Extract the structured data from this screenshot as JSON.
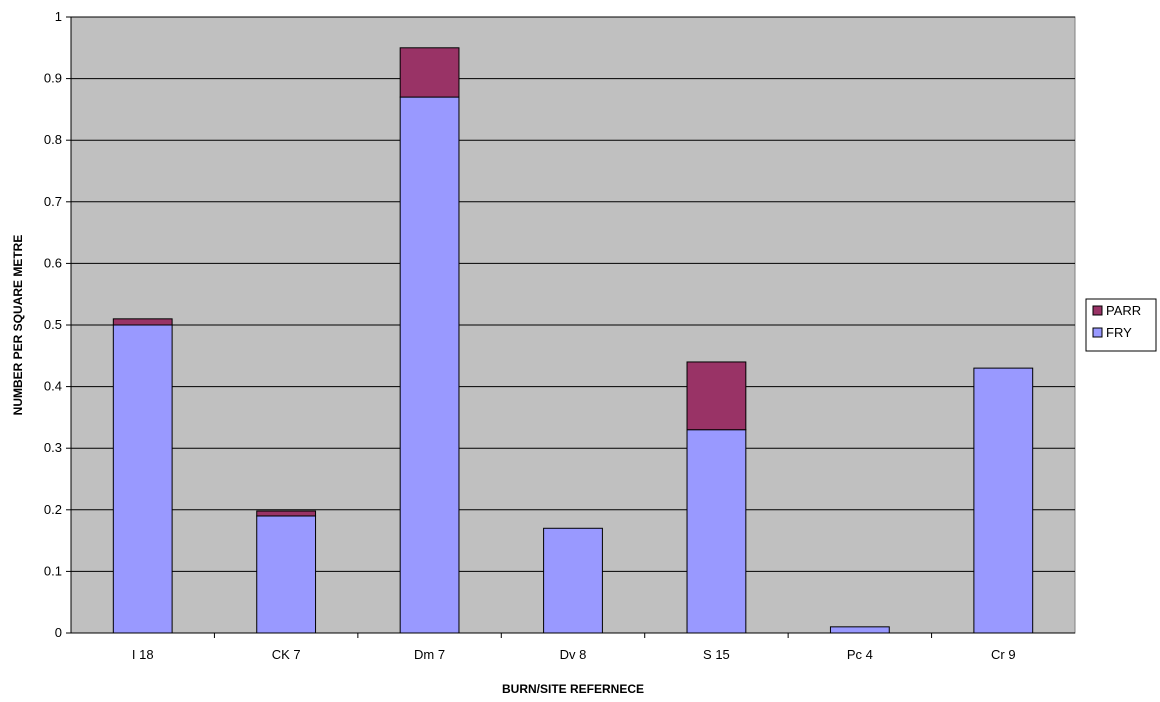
{
  "chart_data": {
    "type": "bar",
    "stacked": true,
    "categories": [
      "I 18",
      "CK 7",
      "Dm 7",
      "Dv 8",
      "S 15",
      "Pc 4",
      "Cr 9"
    ],
    "series": [
      {
        "name": "FRY",
        "color": "#9999ff",
        "values": [
          0.5,
          0.19,
          0.87,
          0.17,
          0.33,
          0.01,
          0.43
        ]
      },
      {
        "name": "PARR",
        "color": "#993366",
        "values": [
          0.01,
          0.008,
          0.08,
          0,
          0.11,
          0,
          0
        ]
      }
    ],
    "legend_order": [
      "PARR",
      "FRY"
    ],
    "xlabel": "BURN/SITE REFERNECE",
    "ylabel": "NUMBER PER SQUARE METRE",
    "ylim": [
      0,
      1
    ],
    "yticks": [
      "0",
      "0.1",
      "0.2",
      "0.3",
      "0.4",
      "0.5",
      "0.6",
      "0.7",
      "0.8",
      "0.9",
      "1"
    ],
    "plot_background": "#c0c0c0",
    "grid": true,
    "legend_position": "right"
  }
}
